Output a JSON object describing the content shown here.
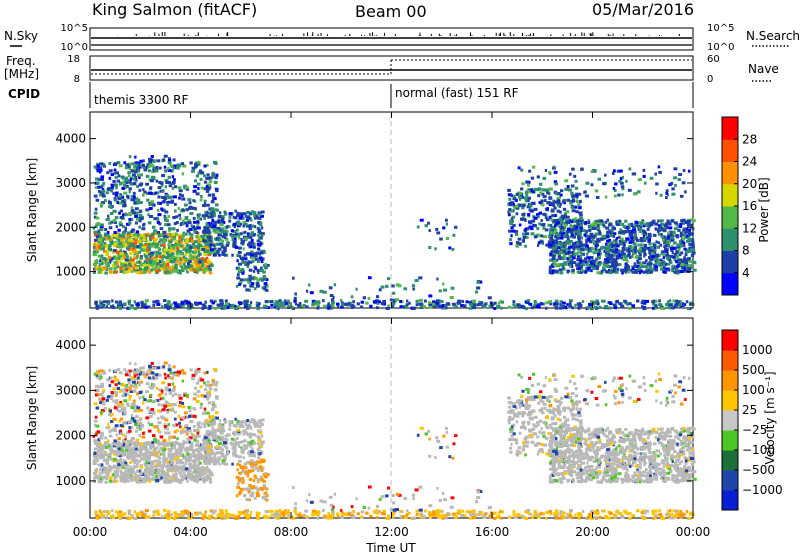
{
  "header": {
    "station": "King Salmon (fitACF)",
    "beam": "Beam 00",
    "date": "05/Mar/2016"
  },
  "params": {
    "nsky_label": "N.Sky",
    "nsky_ticks": [
      "10^5",
      "10^0"
    ],
    "nsearch_label": "N.Search",
    "nsearch_ticks": [
      "10^5",
      "10^0"
    ],
    "freq_label": "Freq.",
    "freq_unit": "[MHz]",
    "freq_ticks": [
      "18",
      "8"
    ],
    "nave_label": "Nave",
    "nave_ticks": [
      "60",
      "0"
    ],
    "cpid_label": "CPID",
    "cpid_segments": [
      {
        "name": "themis 3300 RF",
        "start_hour": 0
      },
      {
        "name": "normal (fast) 151 RF",
        "start_hour": 12
      }
    ]
  },
  "colors": {
    "power": [
      "#0000ff",
      "#1e3fa8",
      "#2d8f6f",
      "#52b848",
      "#d7d700",
      "#ff9000",
      "#ff5000",
      "#ff0000"
    ],
    "velocity": [
      "#ff0000",
      "#ff5a00",
      "#ff9600",
      "#ffc400",
      "#c8c8c8",
      "#4cc826",
      "#1e6e3c",
      "#1e46aa",
      "#0a1ed2"
    ],
    "ground": "#b8b8b8"
  },
  "chart_data": [
    {
      "type": "heatmap",
      "name": "power",
      "xlabel": "",
      "ylabel": "Slant Range [km]",
      "xlim": [
        0,
        24
      ],
      "ylim": [
        180,
        4600
      ],
      "x_ticks": [
        0,
        4,
        8,
        12,
        16,
        20,
        24
      ],
      "y_ticks": [
        1000,
        2000,
        3000,
        4000
      ],
      "colorbar": {
        "label": "Power [dB]",
        "ticks": [
          "4",
          "8",
          "12",
          "16",
          "20",
          "24",
          "28"
        ]
      },
      "scatter_regions": [
        {
          "t": [
            0.0,
            7.0
          ],
          "r": [
            900,
            3600
          ],
          "note": "dense backscatter"
        },
        {
          "t": [
            12.0,
            24.0
          ],
          "r": [
            250,
            400
          ],
          "note": "near-range ground"
        },
        {
          "t": [
            16.5,
            24.0
          ],
          "r": [
            1000,
            3500
          ],
          "note": "evening backscatter"
        }
      ]
    },
    {
      "type": "heatmap",
      "name": "velocity",
      "xlabel": "Time UT",
      "ylabel": "Slant Range [km]",
      "xlim": [
        0,
        24
      ],
      "ylim": [
        180,
        4600
      ],
      "x_ticks": [
        0,
        4,
        8,
        12,
        16,
        20,
        24
      ],
      "y_ticks": [
        1000,
        2000,
        3000,
        4000
      ],
      "x_tick_labels": [
        "00:00",
        "04:00",
        "08:00",
        "12:00",
        "16:00",
        "20:00",
        "00:00"
      ],
      "colorbar": {
        "label": "Velocity [m s⁻¹]",
        "ticks": [
          "1000",
          "500",
          "100",
          "25",
          "−25",
          "−100",
          "−500",
          "−1000"
        ]
      }
    }
  ]
}
